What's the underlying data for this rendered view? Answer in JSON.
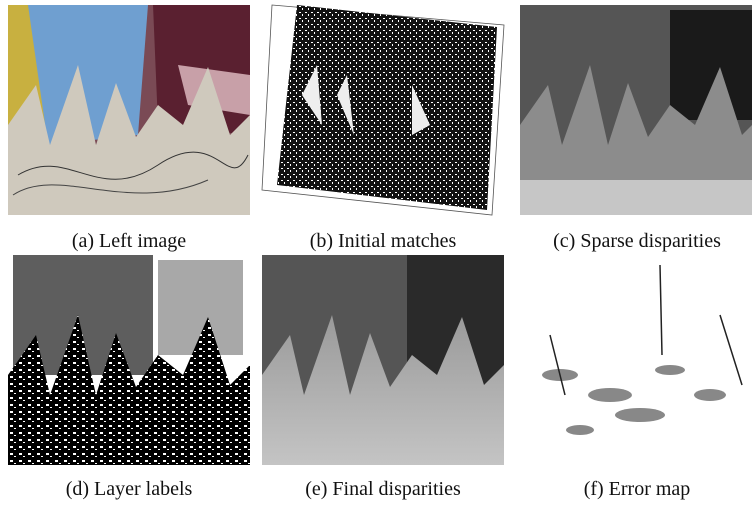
{
  "panels": [
    {
      "caption": "(a) Left image"
    },
    {
      "caption": "(b) Initial matches"
    },
    {
      "caption": "(c) Sparse disparities"
    },
    {
      "caption": "(d) Layer labels"
    },
    {
      "caption": "(e) Final disparities"
    },
    {
      "caption": "(f) Error map"
    }
  ]
}
